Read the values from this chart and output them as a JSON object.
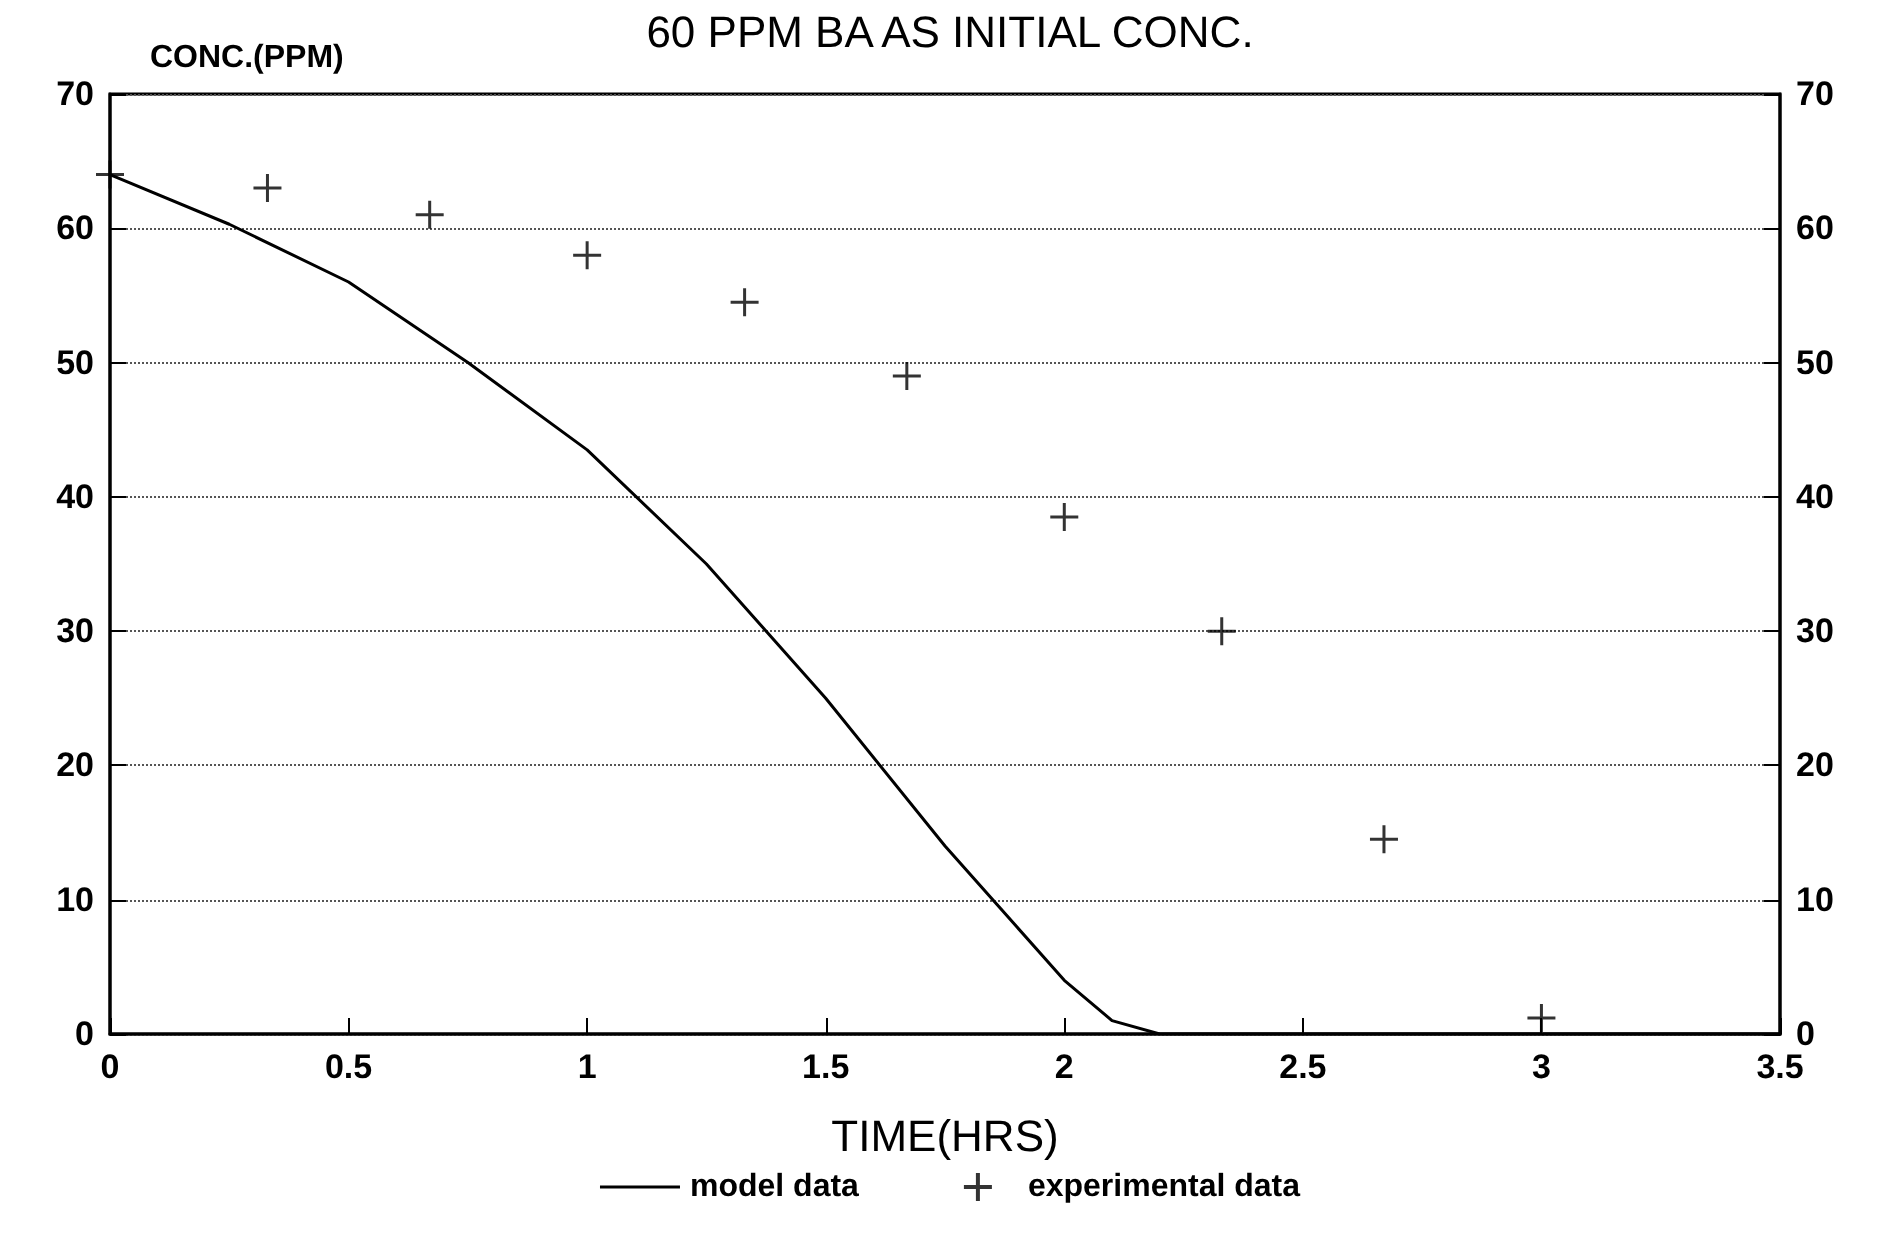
{
  "chart_data": {
    "type": "line",
    "title": "60 PPM BA AS INITIAL CONC.",
    "xlabel": "TIME(HRS)",
    "ylabel": "CONC.(PPM)",
    "xlim": [
      0,
      3.5
    ],
    "xticks": [
      0,
      0.5,
      1,
      1.5,
      2,
      2.5,
      3,
      3.5
    ],
    "ylim": [
      0,
      70
    ],
    "yticks": [
      0,
      10,
      20,
      30,
      40,
      50,
      60,
      70
    ],
    "y2lim": [
      0,
      70
    ],
    "y2ticks": [
      0,
      10,
      20,
      30,
      40,
      50,
      60,
      70
    ],
    "grid": "y",
    "legend": "bottom",
    "series": [
      {
        "name": "model data",
        "color": "#000000",
        "marker": "none",
        "line_style": "solid",
        "x": [
          0,
          0.25,
          0.5,
          0.75,
          1,
          1.25,
          1.5,
          1.75,
          1.9,
          2,
          2.1,
          2.2,
          3.5
        ],
        "values": [
          64,
          60.3,
          56,
          50,
          43.5,
          35,
          25,
          14,
          8,
          4,
          1,
          0,
          0
        ]
      },
      {
        "name": "experimental data",
        "type": "scatter",
        "color": "#000000",
        "marker": "cross",
        "x": [
          0,
          0.33,
          0.67,
          1,
          1.33,
          1.67,
          2,
          2.33,
          2.67,
          3
        ],
        "values": [
          64,
          63,
          61,
          58,
          54.5,
          49,
          38.5,
          30,
          14.5,
          1.2
        ]
      }
    ]
  }
}
